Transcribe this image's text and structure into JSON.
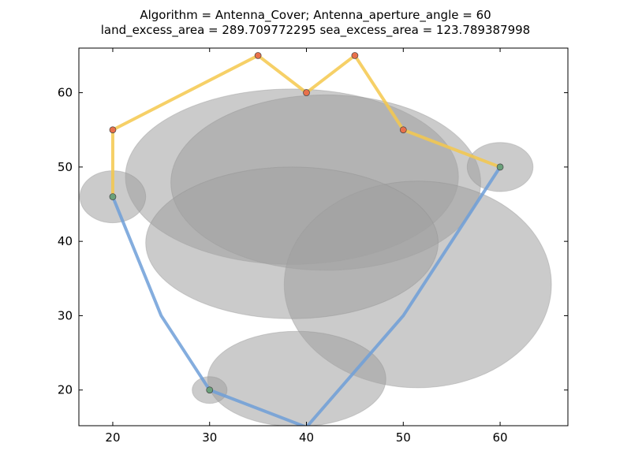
{
  "chart_data": {
    "type": "scatter",
    "title_lines": [
      "Algorithm = Antenna_Cover; Antenna_aperture_angle = 60",
      "land_excess_area = 289.709772295 sea_excess_area = 123.789387998"
    ],
    "xlim": [
      16.5,
      67
    ],
    "ylim": [
      15.2,
      66
    ],
    "xticks": [
      20,
      30,
      40,
      50,
      60
    ],
    "yticks": [
      20,
      30,
      40,
      50,
      60
    ],
    "grid": false,
    "colors": {
      "coverage_fill": "#a0a0a0",
      "land_path": "#f5c84c",
      "sea_path": "#6f9fd8",
      "land_point": "#e8704a",
      "sea_point": "#6aa07a"
    },
    "coverage_ellipses": [
      {
        "cx": 38.5,
        "cy": 48.7,
        "rx": 17.2,
        "ry": 11.8
      },
      {
        "cx": 42.0,
        "cy": 47.9,
        "rx": 16.0,
        "ry": 11.8
      },
      {
        "cx": 51.5,
        "cy": 34.2,
        "rx": 13.8,
        "ry": 13.9
      },
      {
        "cx": 38.5,
        "cy": 39.8,
        "rx": 15.1,
        "ry": 10.2
      },
      {
        "cx": 39.0,
        "cy": 21.5,
        "rx": 9.2,
        "ry": 6.4
      },
      {
        "cx": 20.0,
        "cy": 46.0,
        "rx": 3.4,
        "ry": 3.5
      },
      {
        "cx": 60.0,
        "cy": 50.0,
        "rx": 3.4,
        "ry": 3.3
      },
      {
        "cx": 30.0,
        "cy": 20.0,
        "rx": 1.8,
        "ry": 1.8
      }
    ],
    "land_path": {
      "x": [
        20,
        20,
        35,
        40,
        45,
        50,
        60
      ],
      "y": [
        46,
        55,
        65,
        60,
        65,
        55,
        50
      ]
    },
    "sea_path": {
      "x": [
        20,
        25,
        30,
        40,
        50,
        60
      ],
      "y": [
        46,
        30,
        20,
        15,
        30,
        50
      ]
    },
    "land_points": {
      "x": [
        20,
        35,
        40,
        45,
        50
      ],
      "y": [
        55,
        65,
        60,
        65,
        55
      ]
    },
    "sea_points": {
      "x": [
        20,
        30,
        60
      ],
      "y": [
        46,
        20,
        50
      ]
    }
  }
}
